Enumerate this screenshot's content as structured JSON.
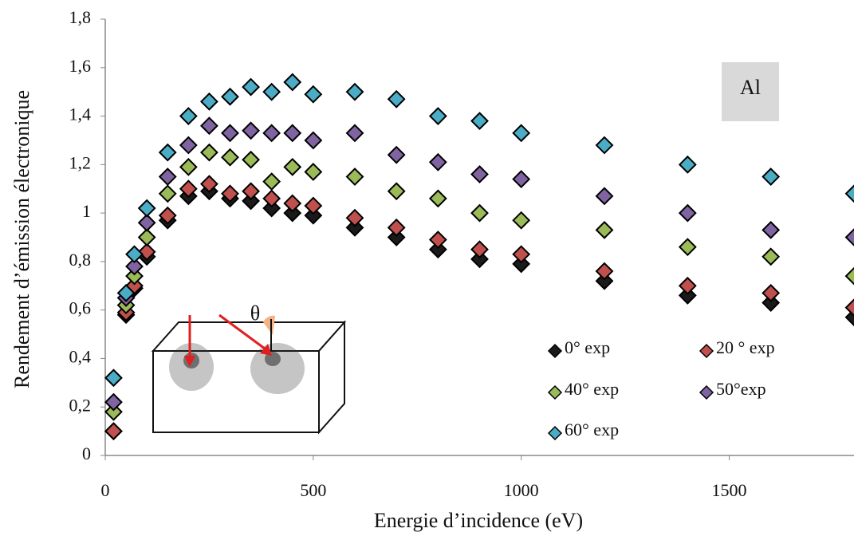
{
  "chart_data": {
    "type": "scatter",
    "x_label": "Energie d’incidence (eV)",
    "y_label": "Rendement d’émission électronique",
    "annotations": [
      "Al",
      "θ"
    ],
    "x": [
      20,
      50,
      70,
      100,
      150,
      200,
      250,
      300,
      350,
      400,
      450,
      500,
      600,
      700,
      800,
      900,
      1000,
      1200,
      1400,
      1600,
      1800
    ],
    "series": [
      {
        "name": "0° exp",
        "color": "#1a1a1a",
        "values": [
          0.1,
          0.58,
          0.69,
          0.82,
          0.97,
          1.07,
          1.09,
          1.06,
          1.05,
          1.02,
          1.0,
          0.99,
          0.94,
          0.9,
          0.85,
          0.81,
          0.79,
          0.72,
          0.66,
          0.63,
          0.57
        ]
      },
      {
        "name": "20 ° exp",
        "color": "#c0504d",
        "values": [
          0.1,
          0.59,
          0.7,
          0.84,
          0.99,
          1.1,
          1.12,
          1.08,
          1.09,
          1.06,
          1.04,
          1.03,
          0.98,
          0.94,
          0.89,
          0.85,
          0.83,
          0.76,
          0.7,
          0.67,
          0.61
        ]
      },
      {
        "name": "40° exp",
        "color": "#9bbb59",
        "values": [
          0.18,
          0.62,
          0.74,
          0.9,
          1.08,
          1.19,
          1.25,
          1.23,
          1.22,
          1.13,
          1.19,
          1.17,
          1.15,
          1.09,
          1.06,
          1.0,
          0.97,
          0.93,
          0.86,
          0.82,
          0.74
        ]
      },
      {
        "name": "50°exp",
        "color": "#8064a2",
        "values": [
          0.22,
          0.65,
          0.78,
          0.96,
          1.15,
          1.28,
          1.36,
          1.33,
          1.34,
          1.33,
          1.33,
          1.3,
          1.33,
          1.24,
          1.21,
          1.16,
          1.14,
          1.07,
          1.0,
          0.93,
          0.9
        ]
      },
      {
        "name": "60° exp",
        "color": "#4bacc6",
        "values": [
          0.32,
          0.67,
          0.83,
          1.02,
          1.25,
          1.4,
          1.46,
          1.48,
          1.52,
          1.5,
          1.54,
          1.49,
          1.5,
          1.47,
          1.4,
          1.38,
          1.33,
          1.28,
          1.2,
          1.15,
          1.08
        ]
      }
    ],
    "xlim": [
      0,
      1800
    ],
    "xticks": [
      0,
      500,
      1000,
      1500
    ],
    "ylim": [
      0,
      1.8
    ],
    "yticks": [
      0,
      {
        "value": 0.2,
        "label": "0,2"
      },
      {
        "value": 0.4,
        "label": "0,4"
      },
      {
        "value": 0.6,
        "label": "0,6"
      },
      {
        "value": 0.8,
        "label": "0,8"
      },
      1,
      {
        "value": 1.2,
        "label": "1,2"
      },
      {
        "value": 1.4,
        "label": "1,4"
      },
      {
        "value": 1.6,
        "label": "1,6"
      },
      {
        "value": 1.8,
        "label": "1,8"
      }
    ],
    "grid": false
  }
}
